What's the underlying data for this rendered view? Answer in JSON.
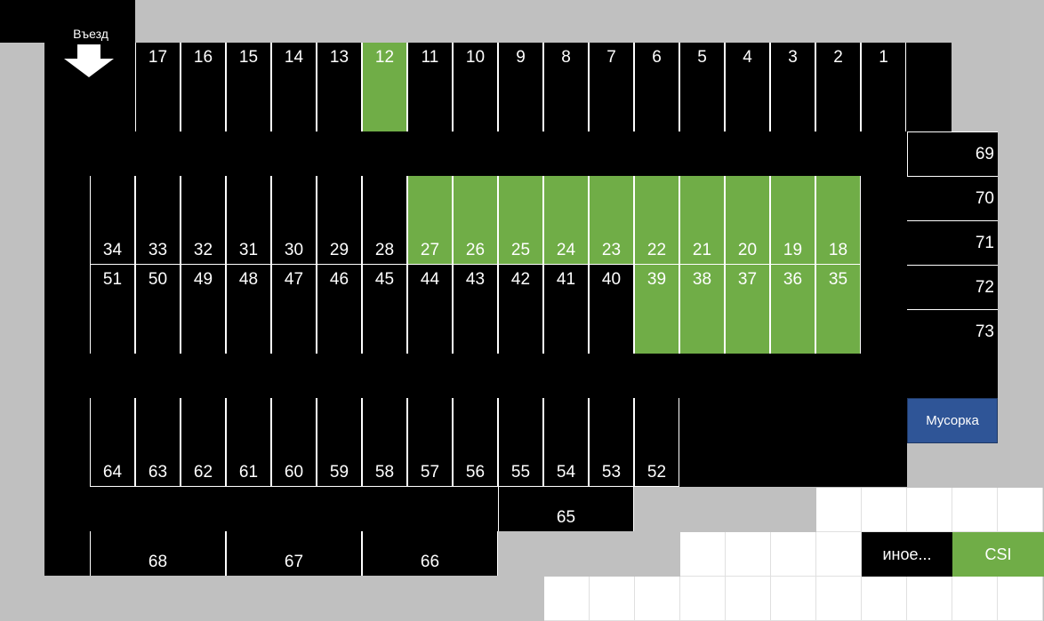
{
  "entry": {
    "label": "Въезд"
  },
  "colors": {
    "lot": "#000000",
    "background": "#c0c0c0",
    "occupied_green": "#70ad47",
    "trash": "#2f5597"
  },
  "spots": {
    "row_top": [
      "17",
      "16",
      "15",
      "14",
      "13",
      "12",
      "11",
      "10",
      "9",
      "8",
      "7",
      "6",
      "5",
      "4",
      "3",
      "2",
      "1"
    ],
    "row_mid_upper": [
      "34",
      "33",
      "32",
      "31",
      "30",
      "29",
      "28",
      "27",
      "26",
      "25",
      "24",
      "23",
      "22",
      "21",
      "20",
      "19",
      "18"
    ],
    "row_mid_lower": [
      "51",
      "50",
      "49",
      "48",
      "47",
      "46",
      "45",
      "44",
      "43",
      "42",
      "41",
      "40",
      "39",
      "38",
      "37",
      "36",
      "35"
    ],
    "row_bottom": [
      "64",
      "63",
      "62",
      "61",
      "60",
      "59",
      "58",
      "57",
      "56",
      "55",
      "54",
      "53",
      "52"
    ],
    "row_large": [
      "68",
      "67",
      "66"
    ],
    "single_65": "65",
    "right_column": [
      "69",
      "70",
      "71",
      "72",
      "73"
    ],
    "green": [
      "12",
      "27",
      "26",
      "25",
      "24",
      "23",
      "22",
      "21",
      "20",
      "19",
      "18",
      "39",
      "38",
      "37",
      "36",
      "35"
    ]
  },
  "trash": {
    "label": "Мусорка"
  },
  "legend": {
    "other_label": "иное...",
    "csi_label": "CSI"
  }
}
